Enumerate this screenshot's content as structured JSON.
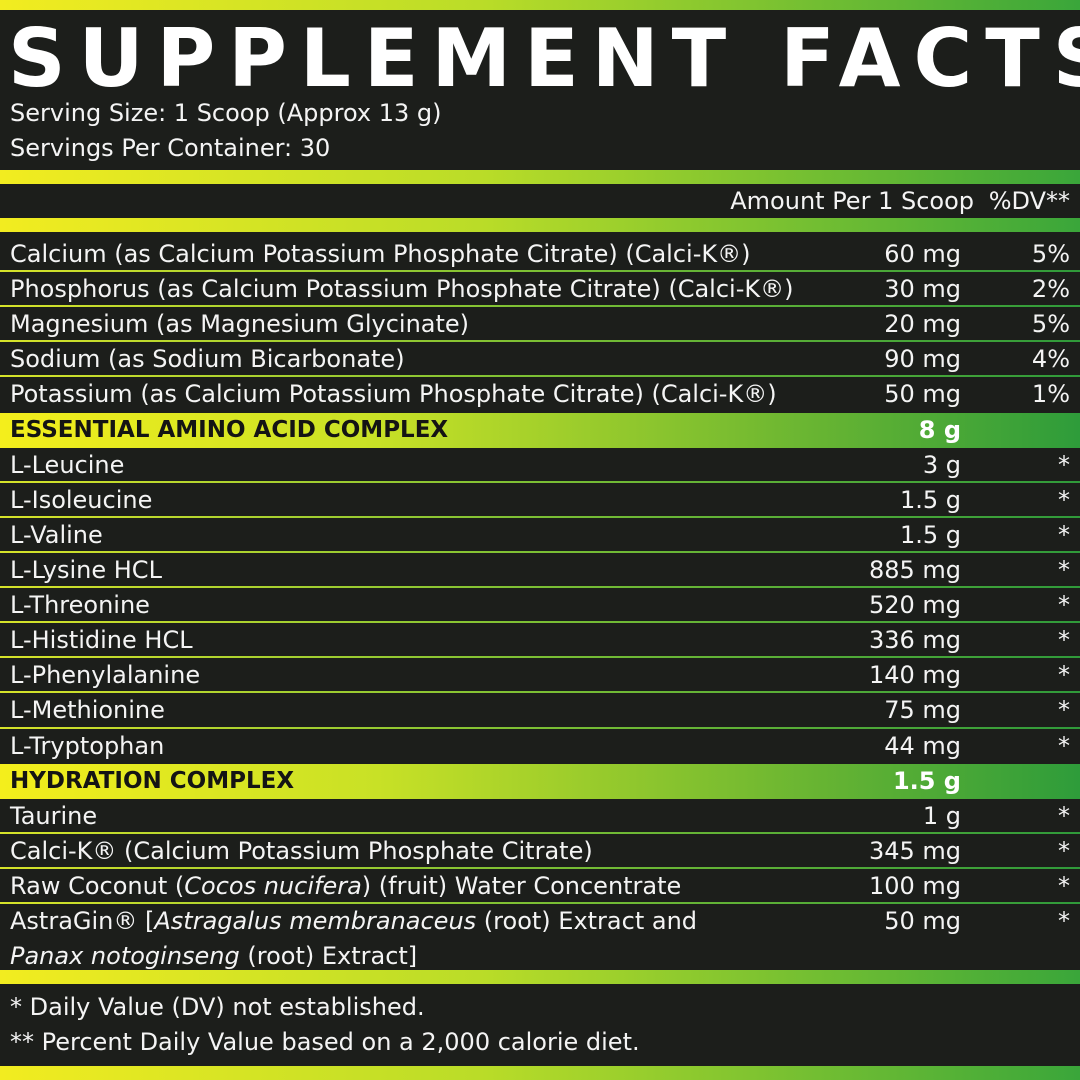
{
  "title": "SUPPLEMENT FACTS",
  "serving_size": "Serving Size: 1 Scoop (Approx 13 g)",
  "servings_per_container": "Servings Per Container: 30",
  "amount_header": "Amount Per 1 Scoop",
  "dv_header": "%DV**",
  "minerals": [
    {
      "name": "Calcium (as Calcium Potassium Phosphate Citrate) (Calci-K®)",
      "amount": "60 mg",
      "dv": "5%"
    },
    {
      "name": "Phosphorus (as Calcium Potassium Phosphate Citrate) (Calci-K®)",
      "amount": "30 mg",
      "dv": "2%"
    },
    {
      "name": "Magnesium (as Magnesium Glycinate)",
      "amount": "20 mg",
      "dv": "5%"
    },
    {
      "name": "Sodium (as Sodium Bicarbonate)",
      "amount": "90 mg",
      "dv": "4%"
    },
    {
      "name": "Potassium (as Calcium Potassium Phosphate Citrate) (Calci-K®)",
      "amount": "50 mg",
      "dv": "1%"
    }
  ],
  "eaa_complex": {
    "name": "ESSENTIAL AMINO ACID COMPLEX",
    "amount": "8 g",
    "items": [
      {
        "name": "L-Leucine",
        "amount": "3 g",
        "dv": "*"
      },
      {
        "name": "L-Isoleucine",
        "amount": "1.5 g",
        "dv": "*"
      },
      {
        "name": "L-Valine",
        "amount": "1.5 g",
        "dv": "*"
      },
      {
        "name": "L-Lysine HCL",
        "amount": "885 mg",
        "dv": "*"
      },
      {
        "name": "L-Threonine",
        "amount": "520 mg",
        "dv": "*"
      },
      {
        "name": "L-Histidine HCL",
        "amount": "336 mg",
        "dv": "*"
      },
      {
        "name": "L-Phenylalanine",
        "amount": "140 mg",
        "dv": "*"
      },
      {
        "name": "L-Methionine",
        "amount": "75 mg",
        "dv": "*"
      },
      {
        "name": "L-Tryptophan",
        "amount": "44 mg",
        "dv": "*"
      }
    ]
  },
  "hydration_complex": {
    "name": "HYDRATION COMPLEX",
    "amount": "1.5 g",
    "taurine": {
      "name": "Taurine",
      "amount": "1 g",
      "dv": "*"
    },
    "calcik": {
      "name": "Calci-K® (Calcium Potassium Phosphate Citrate)",
      "amount": "345 mg",
      "dv": "*"
    },
    "coconut": {
      "prefix": "Raw Coconut (",
      "latin": "Cocos nucifera",
      "suffix": ") (fruit) Water Concentrate",
      "amount": "100 mg",
      "dv": "*"
    },
    "astragin": {
      "prefix": "AstraGin® [",
      "latin1": "Astragalus membranaceus",
      "middle": " (root) Extract and",
      "latin2": "Panax notoginseng",
      "suffix": " (root) Extract]",
      "amount": "50 mg",
      "dv": "*"
    }
  },
  "footnotes": [
    "* Daily Value (DV) not established.",
    "** Percent Daily Value based on a 2,000 calorie diet."
  ],
  "colors": {
    "background": "#1c1e1b",
    "gradient_yellow": "#f2ec20",
    "gradient_green": "#3aa63a",
    "text": "#f4f4f4"
  }
}
